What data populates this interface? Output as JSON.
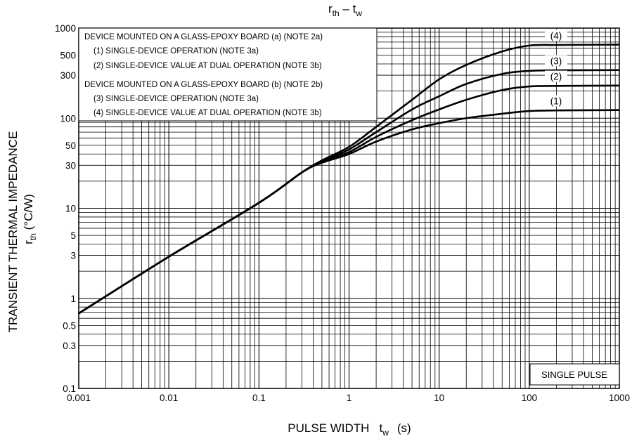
{
  "chart_data": {
    "type": "line",
    "title": "rth – tw",
    "title_main": "r",
    "title_main_sub": "th",
    "title_dash": " – t",
    "title_dash_sub": "w",
    "xlabel": "PULSE WIDTH",
    "xlabel_symbol": "t",
    "xlabel_symbol_sub": "w",
    "xlabel_unit": "(s)",
    "ylabel": "TRANSIENT THERMAL IMPEDANCE",
    "ylabel_symbol": "r",
    "ylabel_symbol_sub": "th",
    "ylabel_unit": "(°C/W)",
    "xscale": "log",
    "yscale": "log",
    "xlim": [
      0.001,
      1000
    ],
    "ylim": [
      0.1,
      1000
    ],
    "grid": true,
    "x_ticks": [
      0.001,
      0.01,
      0.1,
      1,
      10,
      100,
      1000
    ],
    "x_tick_labels": [
      "0.001",
      "0.01",
      "0.1",
      "1",
      "10",
      "100",
      "1000"
    ],
    "y_ticks": [
      0.1,
      0.3,
      0.5,
      1,
      3,
      5,
      10,
      30,
      50,
      100,
      300,
      500,
      1000
    ],
    "y_tick_labels": [
      "0.1",
      "0.3",
      "0.5",
      "1",
      "3",
      "5",
      "10",
      "30",
      "50",
      "100",
      "300",
      "500",
      "1000"
    ],
    "legend": {
      "placement": "top-left",
      "lines": [
        "DEVICE MOUNTED ON A GLASS-EPOXY BOARD (a) (NOTE 2a)",
        "(1)   SINGLE-DEVICE OPERATION (NOTE 3a)",
        "(2)   SINGLE-DEVICE VALUE AT DUAL OPERATION (NOTE 3b)",
        "DEVICE MOUNTED ON A GLASS-EPOXY BOARD (b) (NOTE 2b)",
        "(3)   SINGLE-DEVICE OPERATION (NOTE 3a)",
        "(4)   SINGLE-DEVICE VALUE AT DUAL OPERATION (NOTE 3b)"
      ]
    },
    "annotation": "SINGLE PULSE",
    "series": [
      {
        "name": "(1)",
        "x": [
          0.001,
          0.01,
          0.1,
          0.3,
          0.5,
          1,
          2,
          5,
          10,
          20,
          50,
          100,
          200,
          1000
        ],
        "y": [
          0.68,
          2.9,
          11.5,
          25,
          32,
          40,
          55,
          75,
          88,
          100,
          112,
          120,
          122,
          123
        ]
      },
      {
        "name": "(2)",
        "x": [
          0.001,
          0.01,
          0.1,
          0.3,
          0.5,
          1,
          2,
          5,
          10,
          20,
          50,
          100,
          200,
          1000
        ],
        "y": [
          0.68,
          2.9,
          11.5,
          25,
          33,
          42,
          62,
          95,
          125,
          160,
          205,
          225,
          228,
          230
        ]
      },
      {
        "name": "(3)",
        "x": [
          0.001,
          0.01,
          0.1,
          0.3,
          0.5,
          1,
          2,
          5,
          10,
          20,
          50,
          100,
          200,
          1000
        ],
        "y": [
          0.68,
          2.9,
          11.5,
          25,
          33,
          45,
          70,
          125,
          175,
          240,
          310,
          335,
          340,
          342
        ]
      },
      {
        "name": "(4)",
        "x": [
          0.001,
          0.01,
          0.1,
          0.3,
          0.5,
          1,
          2,
          5,
          10,
          20,
          50,
          100,
          200,
          1000
        ],
        "y": [
          0.68,
          2.9,
          11.5,
          25,
          34,
          48,
          80,
          160,
          270,
          390,
          550,
          640,
          650,
          655
        ]
      }
    ]
  }
}
